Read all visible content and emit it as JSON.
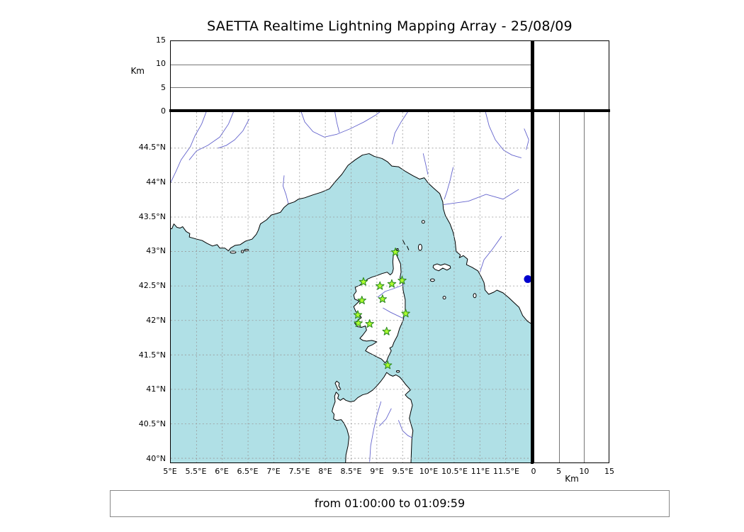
{
  "title": "SAETTA Realtime Lightning Mapping Array - 25/08/09",
  "status_bar": {
    "text": "from 01:00:00 to 01:09:59"
  },
  "altitude_axis": {
    "label": "Km",
    "range_km": [
      0,
      15
    ],
    "ticks": [
      {
        "value": 0,
        "label": "0"
      },
      {
        "value": 5,
        "label": "5"
      },
      {
        "value": 10,
        "label": "10"
      },
      {
        "value": 15,
        "label": "15"
      }
    ]
  },
  "map": {
    "lon_ticks": [
      {
        "value": 5,
        "label": "5°E"
      },
      {
        "value": 5.5,
        "label": "5.5°E"
      },
      {
        "value": 6,
        "label": "6°E"
      },
      {
        "value": 6.5,
        "label": "6.5°E"
      },
      {
        "value": 7,
        "label": "7°E"
      },
      {
        "value": 7.5,
        "label": "7.5°E"
      },
      {
        "value": 8,
        "label": "8°E"
      },
      {
        "value": 8.5,
        "label": "8.5°E"
      },
      {
        "value": 9,
        "label": "9°E"
      },
      {
        "value": 9.5,
        "label": "9.5°E"
      },
      {
        "value": 10,
        "label": "10°E"
      },
      {
        "value": 10.5,
        "label": "10.5°E"
      },
      {
        "value": 11,
        "label": "11°E"
      },
      {
        "value": 11.5,
        "label": "11.5°E"
      }
    ],
    "lat_ticks": [
      {
        "value": 40,
        "label": "40°N"
      },
      {
        "value": 40.5,
        "label": "40.5°N"
      },
      {
        "value": 41,
        "label": "41°N"
      },
      {
        "value": 41.5,
        "label": "41.5°N"
      },
      {
        "value": 42,
        "label": "42°N"
      },
      {
        "value": 42.5,
        "label": "42.5°N"
      },
      {
        "value": 43,
        "label": "43°N"
      },
      {
        "value": 43.5,
        "label": "43.5°N"
      },
      {
        "value": 44,
        "label": "44°N"
      },
      {
        "value": 44.5,
        "label": "44.5°N"
      }
    ],
    "colors": {
      "sea": "#b0e0e6",
      "land": "#ffffff",
      "coast": "#000000",
      "river": "#6464cd",
      "grid": "#999999",
      "station_fill": "#adff2f",
      "station_edge": "#2e8b22",
      "lake": "#0000cd"
    },
    "stations": [
      {
        "lon": 9.36,
        "lat": 42.99
      },
      {
        "lon": 8.74,
        "lat": 42.56
      },
      {
        "lon": 9.06,
        "lat": 42.5
      },
      {
        "lon": 9.29,
        "lat": 42.53
      },
      {
        "lon": 9.49,
        "lat": 42.58
      },
      {
        "lon": 8.71,
        "lat": 42.29
      },
      {
        "lon": 9.11,
        "lat": 42.31
      },
      {
        "lon": 8.63,
        "lat": 42.08
      },
      {
        "lon": 9.56,
        "lat": 42.1
      },
      {
        "lon": 8.64,
        "lat": 41.96
      },
      {
        "lon": 8.86,
        "lat": 41.95
      },
      {
        "lon": 9.19,
        "lat": 41.84
      },
      {
        "lon": 9.21,
        "lat": 41.35
      }
    ],
    "blue_dot": {
      "lon": 11.93,
      "lat": 42.6
    }
  }
}
